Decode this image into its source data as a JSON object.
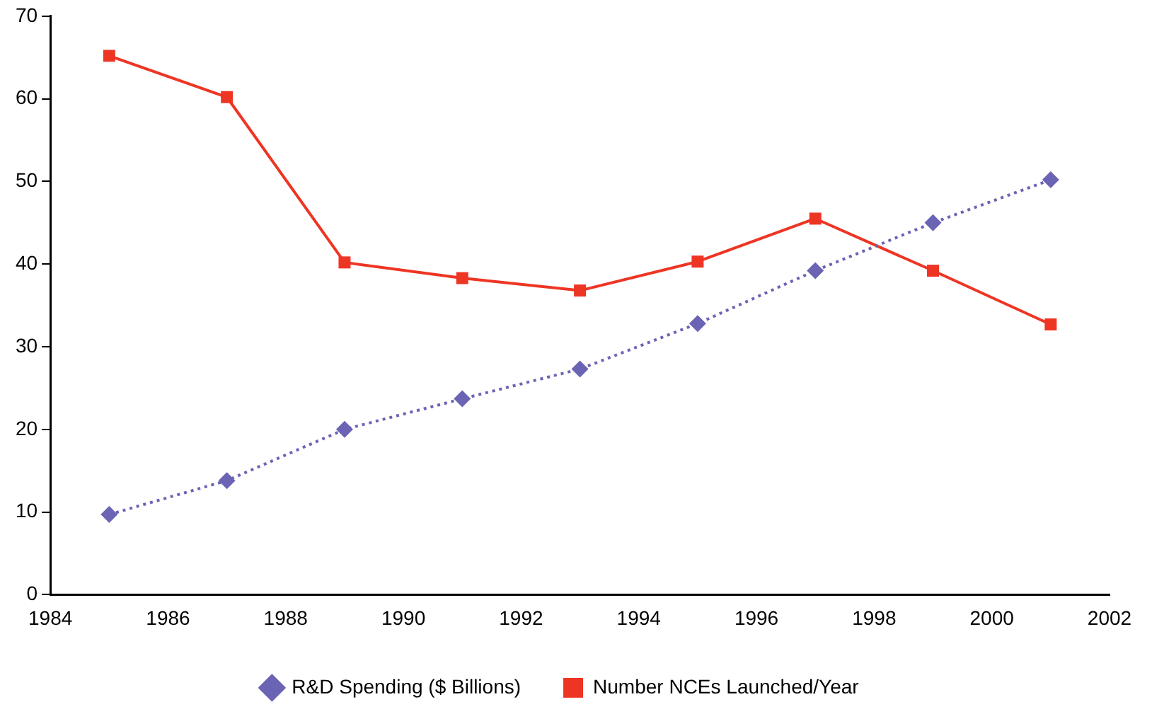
{
  "chart_data": {
    "type": "line",
    "x": [
      1985,
      1987,
      1989,
      1991,
      1993,
      1995,
      1997,
      1999,
      2001
    ],
    "series": [
      {
        "name": "R&D Spending ($ Billions)",
        "color": "#6b64b4",
        "marker": "diamond",
        "line_style": "dotted",
        "values": [
          9.7,
          13.8,
          20,
          23.7,
          27.3,
          32.8,
          39.2,
          45,
          50.2
        ]
      },
      {
        "name": "Number NCEs Launched/Year",
        "color": "#ee3524",
        "marker": "square",
        "line_style": "solid",
        "values": [
          65.2,
          60.2,
          40.2,
          38.3,
          36.8,
          40.3,
          45.5,
          39.2,
          32.7
        ]
      }
    ],
    "xlim": [
      1984,
      2002
    ],
    "xticks": [
      1984,
      1986,
      1988,
      1990,
      1992,
      1994,
      1996,
      1998,
      2000,
      2002
    ],
    "ylim": [
      0,
      70
    ],
    "yticks": [
      0,
      10,
      20,
      30,
      40,
      50,
      60,
      70
    ],
    "grid": false,
    "legend": "bottom"
  }
}
